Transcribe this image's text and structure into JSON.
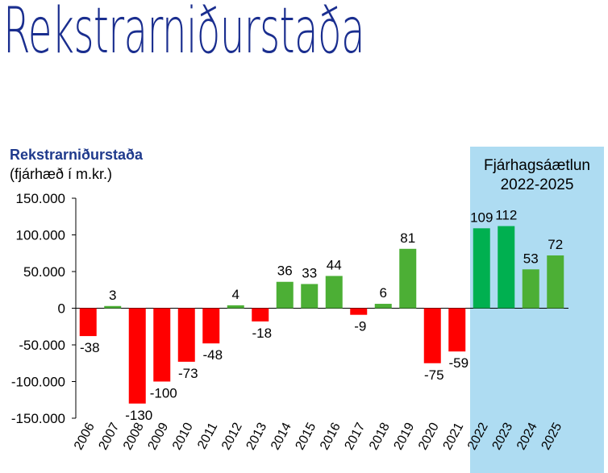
{
  "page": {
    "big_title": "Rekstrarniðurstaða"
  },
  "chart_data": {
    "type": "bar",
    "title": "Rekstrarniðurstaða",
    "subtitle": "(fjárhæð í m.kr.)",
    "categories": [
      "2006",
      "2007",
      "2008",
      "2009",
      "2010",
      "2011",
      "2012",
      "2013",
      "2014",
      "2015",
      "2016",
      "2017",
      "2018",
      "2019",
      "2020",
      "2021",
      "2022",
      "2023",
      "2024",
      "2025"
    ],
    "values": [
      -38,
      3,
      -130,
      -100,
      -73,
      -48,
      4,
      -18,
      36,
      33,
      44,
      -9,
      6,
      81,
      -75,
      -59,
      109,
      112,
      53,
      72
    ],
    "data_labels": [
      "-38",
      "3",
      "-130",
      "-100",
      "-73",
      "-48",
      "4",
      "-18",
      "36",
      "33",
      "44",
      "-9",
      "6",
      "81",
      "-75",
      "-59",
      "109",
      "112",
      "53",
      "72"
    ],
    "ylim": [
      -150,
      150
    ],
    "yticks": [
      150,
      100,
      50,
      0,
      -50,
      -100,
      -150
    ],
    "ytick_labels": [
      "150.000",
      "100.000",
      "50.000",
      "0",
      "-50.000",
      "-100.000",
      "-150.000"
    ],
    "forecast": {
      "label_line1": "Fjárhagsáætlun",
      "label_line2": "2022-2025",
      "start_category": "2022",
      "end_category": "2025"
    },
    "colors": {
      "negative": "#ff0000",
      "positive": "#4caf35",
      "forecast_positive": "#00b050",
      "forecast_band": "#aedcf2",
      "title": "#1f3a8c"
    }
  }
}
